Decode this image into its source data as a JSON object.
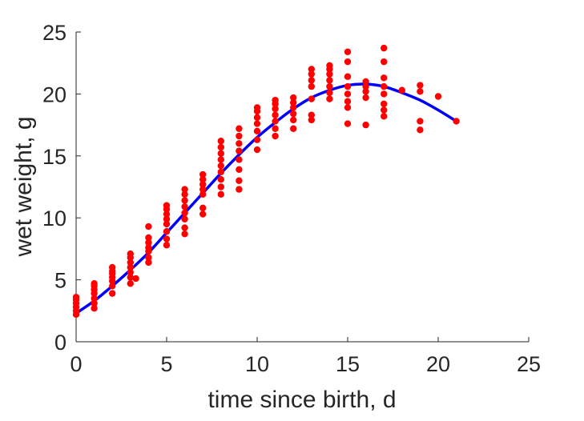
{
  "chart_data": {
    "type": "scatter",
    "xlabel": "time since birth, d",
    "ylabel": "wet weight, g",
    "xlim": [
      0,
      25
    ],
    "ylim": [
      0,
      25
    ],
    "xticks": [
      "0",
      "5",
      "10",
      "15",
      "20",
      "25"
    ],
    "yticks": [
      "0",
      "5",
      "10",
      "15",
      "20",
      "25"
    ],
    "grid": false,
    "legend": "none",
    "colors": {
      "points": "#ff0000",
      "fit": "#0000ff",
      "axis": "#262626"
    },
    "series": [
      {
        "kind": "scatter",
        "points": [
          [
            0,
            2.2
          ],
          [
            0,
            2.5
          ],
          [
            0,
            2.8
          ],
          [
            0,
            3.1
          ],
          [
            0,
            3.4
          ],
          [
            0,
            3.6
          ],
          [
            1,
            2.7
          ],
          [
            1,
            3.1
          ],
          [
            1,
            3.5
          ],
          [
            1,
            3.9
          ],
          [
            1,
            4.2
          ],
          [
            1,
            4.5
          ],
          [
            1,
            4.7
          ],
          [
            2,
            3.9
          ],
          [
            2,
            4.5
          ],
          [
            2,
            4.9
          ],
          [
            2,
            5.2
          ],
          [
            2,
            5.5
          ],
          [
            2,
            5.7
          ],
          [
            2,
            6.0
          ],
          [
            3,
            4.7
          ],
          [
            3,
            5.2
          ],
          [
            3,
            5.6
          ],
          [
            3,
            6.0
          ],
          [
            3,
            6.4
          ],
          [
            3,
            6.8
          ],
          [
            3,
            7.1
          ],
          [
            3.3,
            5.1
          ],
          [
            4,
            6.4
          ],
          [
            4,
            6.8
          ],
          [
            4,
            7.3
          ],
          [
            4,
            7.6
          ],
          [
            4,
            8.0
          ],
          [
            4,
            8.4
          ],
          [
            4,
            9.3
          ],
          [
            5,
            7.8
          ],
          [
            5,
            8.3
          ],
          [
            5,
            8.9
          ],
          [
            5,
            9.5
          ],
          [
            5,
            9.9
          ],
          [
            5,
            10.3
          ],
          [
            5,
            10.7
          ],
          [
            5,
            11.0
          ],
          [
            6,
            8.7
          ],
          [
            6,
            9.2
          ],
          [
            6,
            9.9
          ],
          [
            6,
            10.4
          ],
          [
            6,
            10.9
          ],
          [
            6,
            11.4
          ],
          [
            6,
            11.9
          ],
          [
            6,
            12.3
          ],
          [
            7,
            10.3
          ],
          [
            7,
            10.8
          ],
          [
            7,
            11.9
          ],
          [
            7,
            12.3
          ],
          [
            7,
            12.7
          ],
          [
            7,
            13.1
          ],
          [
            7,
            13.5
          ],
          [
            8,
            11.9
          ],
          [
            8,
            12.5
          ],
          [
            8,
            13.1
          ],
          [
            8,
            13.7
          ],
          [
            8,
            14.2
          ],
          [
            8,
            14.7
          ],
          [
            8,
            15.2
          ],
          [
            8,
            15.7
          ],
          [
            8,
            16.2
          ],
          [
            9,
            12.3
          ],
          [
            9,
            13.0
          ],
          [
            9,
            13.9
          ],
          [
            9,
            14.7
          ],
          [
            9,
            15.4
          ],
          [
            9,
            16.0
          ],
          [
            9,
            16.6
          ],
          [
            9,
            17.2
          ],
          [
            10,
            15.5
          ],
          [
            10,
            16.3
          ],
          [
            10,
            17.0
          ],
          [
            10,
            17.6
          ],
          [
            10,
            18.1
          ],
          [
            10,
            18.6
          ],
          [
            10,
            18.9
          ],
          [
            11,
            16.6
          ],
          [
            11,
            17.2
          ],
          [
            11,
            17.8
          ],
          [
            11,
            18.3
          ],
          [
            11,
            18.8
          ],
          [
            11,
            19.2
          ],
          [
            11,
            19.5
          ],
          [
            12,
            17.2
          ],
          [
            12,
            17.9
          ],
          [
            12,
            18.4
          ],
          [
            12,
            18.9
          ],
          [
            12,
            19.3
          ],
          [
            12,
            19.7
          ],
          [
            13,
            17.9
          ],
          [
            13,
            18.3
          ],
          [
            13,
            19.6
          ],
          [
            13,
            20.6
          ],
          [
            13,
            21.1
          ],
          [
            13,
            21.6
          ],
          [
            13,
            22.0
          ],
          [
            14,
            19.6
          ],
          [
            14,
            20.1
          ],
          [
            14,
            20.6
          ],
          [
            14,
            21.1
          ],
          [
            14,
            21.6
          ],
          [
            14,
            22.0
          ],
          [
            14,
            22.3
          ],
          [
            15,
            17.6
          ],
          [
            15,
            18.9
          ],
          [
            15,
            19.4
          ],
          [
            15,
            20.0
          ],
          [
            15,
            20.6
          ],
          [
            15,
            21.4
          ],
          [
            15,
            22.6
          ],
          [
            15,
            23.4
          ],
          [
            16,
            17.5
          ],
          [
            16,
            19.7
          ],
          [
            16,
            20.2
          ],
          [
            16,
            20.6
          ],
          [
            16,
            21.0
          ],
          [
            17,
            18.2
          ],
          [
            17,
            18.7
          ],
          [
            17,
            19.2
          ],
          [
            17,
            20.0
          ],
          [
            17,
            20.6
          ],
          [
            17,
            21.3
          ],
          [
            17,
            22.6
          ],
          [
            17,
            23.7
          ],
          [
            18,
            20.3
          ],
          [
            19,
            17.1
          ],
          [
            19,
            17.8
          ],
          [
            19,
            20.2
          ],
          [
            19,
            20.7
          ],
          [
            20,
            19.8
          ],
          [
            21,
            17.8
          ]
        ]
      },
      {
        "kind": "line",
        "points": [
          [
            0,
            2.3
          ],
          [
            1,
            3.3
          ],
          [
            2,
            4.5
          ],
          [
            3,
            5.8
          ],
          [
            4,
            7.2
          ],
          [
            5,
            8.8
          ],
          [
            6,
            10.4
          ],
          [
            7,
            12.0
          ],
          [
            8,
            13.6
          ],
          [
            9,
            15.1
          ],
          [
            10,
            16.5
          ],
          [
            11,
            17.7
          ],
          [
            12,
            18.8
          ],
          [
            13,
            19.7
          ],
          [
            14,
            20.3
          ],
          [
            15,
            20.7
          ],
          [
            16,
            20.8
          ],
          [
            17,
            20.6
          ],
          [
            18,
            20.1
          ],
          [
            19,
            19.5
          ],
          [
            20,
            18.7
          ],
          [
            21,
            17.8
          ]
        ]
      }
    ]
  }
}
